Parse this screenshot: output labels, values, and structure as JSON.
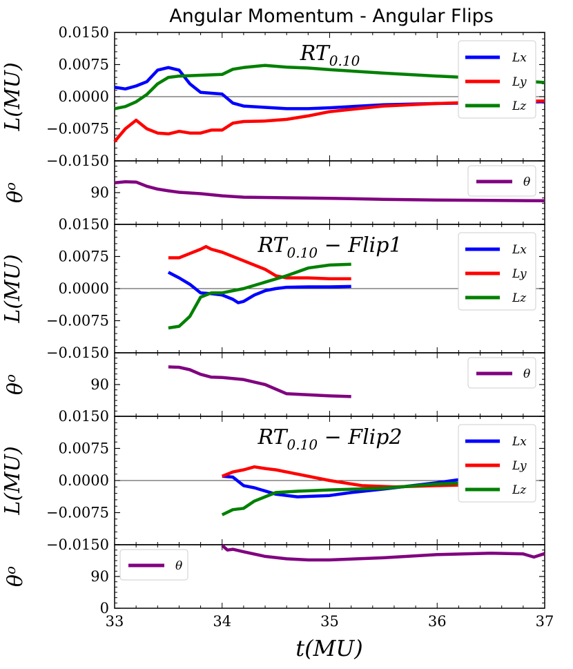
{
  "chart_data": {
    "type": "line",
    "title": "Angular Momentum - Angular Flips",
    "xlabel": "t(MU)",
    "xlim": [
      33,
      37
    ],
    "x_ticks": [
      "33",
      "34",
      "35",
      "36",
      "37"
    ],
    "colors": {
      "Lx": "#0000ff",
      "Ly": "#ff0000",
      "Lz": "#008000",
      "theta": "#800080"
    },
    "panels": [
      {
        "title_main": "RT",
        "title_sub": "0.10",
        "title_suffix": "",
        "L_ylabel": "L(MU)",
        "L_ylim": [
          -0.015,
          0.015
        ],
        "L_ticks": [
          "0.0150",
          "0.0075",
          "0.0000",
          "−0.0075",
          "−0.0150"
        ],
        "L_legend": [
          "Lx",
          "Ly",
          "Lz"
        ],
        "theta_ylabel": "θ",
        "theta_ylabel_sup": "o",
        "theta_ylim": [
          0,
          180
        ],
        "theta_ticks": [
          "90"
        ],
        "theta_legend": "θ",
        "theta_legend_pos": "top-right",
        "series": [
          {
            "name": "Lx",
            "x": [
              33.0,
              33.1,
              33.2,
              33.3,
              33.4,
              33.5,
              33.6,
              33.7,
              33.8,
              33.9,
              34.0,
              34.1,
              34.2,
              34.4,
              34.6,
              34.8,
              35.0,
              35.5,
              36.0,
              36.5,
              37.0
            ],
            "y": [
              0.0022,
              0.0018,
              0.0025,
              0.0035,
              0.0062,
              0.0068,
              0.0062,
              0.003,
              0.001,
              0.0008,
              0.0006,
              -0.0015,
              -0.0022,
              -0.0025,
              -0.0028,
              -0.0028,
              -0.0026,
              -0.0019,
              -0.0016,
              -0.0014,
              -0.0012
            ]
          },
          {
            "name": "Ly",
            "x": [
              33.0,
              33.1,
              33.2,
              33.3,
              33.4,
              33.5,
              33.6,
              33.7,
              33.8,
              33.9,
              34.0,
              34.1,
              34.2,
              34.4,
              34.6,
              34.8,
              35.0,
              35.5,
              36.0,
              36.5,
              37.0
            ],
            "y": [
              -0.0105,
              -0.0075,
              -0.0055,
              -0.0075,
              -0.0085,
              -0.0087,
              -0.0081,
              -0.0085,
              -0.0085,
              -0.0078,
              -0.0078,
              -0.0062,
              -0.0058,
              -0.0057,
              -0.0053,
              -0.0045,
              -0.0035,
              -0.0022,
              -0.0016,
              -0.0012,
              -0.001
            ]
          },
          {
            "name": "Lz",
            "x": [
              33.0,
              33.1,
              33.2,
              33.3,
              33.4,
              33.5,
              33.6,
              33.8,
              34.0,
              34.1,
              34.2,
              34.4,
              34.6,
              34.8,
              35.0,
              35.5,
              36.0,
              36.5,
              37.0
            ],
            "y": [
              -0.0028,
              -0.0023,
              -0.0012,
              0.0005,
              0.003,
              0.0045,
              0.0048,
              0.005,
              0.0052,
              0.0064,
              0.0068,
              0.0073,
              0.0069,
              0.0067,
              0.0063,
              0.0055,
              0.0048,
              0.0042,
              0.0033
            ]
          },
          {
            "name": "theta",
            "x": [
              33.0,
              33.1,
              33.2,
              33.3,
              33.4,
              33.5,
              33.6,
              33.8,
              34.0,
              34.2,
              34.5,
              35.0,
              35.5,
              36.0,
              36.5,
              37.0
            ],
            "y": [
              118,
              121,
              120,
              108,
              100,
              95,
              91,
              87,
              81,
              77,
              76,
              74,
              71,
              69,
              68,
              67
            ]
          }
        ]
      },
      {
        "title_main": "RT",
        "title_sub": "0.10",
        "title_suffix": " − Flip1",
        "L_ylabel": "L(MU)",
        "L_ylim": [
          -0.015,
          0.015
        ],
        "L_ticks": [
          "0.0150",
          "0.0075",
          "0.0000",
          "−0.0075",
          "−0.0150"
        ],
        "L_legend": [
          "Lx",
          "Ly",
          "Lz"
        ],
        "theta_ylabel": "θ",
        "theta_ylabel_sup": "o",
        "theta_ylim": [
          0,
          180
        ],
        "theta_ticks": [
          "90"
        ],
        "theta_legend": "θ",
        "theta_legend_pos": "top-right",
        "series": [
          {
            "name": "Lx",
            "x": [
              33.5,
              33.6,
              33.7,
              33.8,
              33.9,
              34.0,
              34.1,
              34.15,
              34.2,
              34.3,
              34.4,
              34.5,
              34.6,
              34.8,
              35.0,
              35.2
            ],
            "y": [
              0.0038,
              0.0025,
              0.001,
              -0.001,
              -0.0012,
              -0.0015,
              -0.0025,
              -0.0033,
              -0.003,
              -0.0015,
              -0.0005,
              0.0,
              0.0003,
              0.0004,
              0.0004,
              0.0005
            ]
          },
          {
            "name": "Ly",
            "x": [
              33.5,
              33.6,
              33.7,
              33.8,
              33.85,
              33.9,
              34.0,
              34.2,
              34.4,
              34.5,
              34.6,
              34.8,
              35.0,
              35.2
            ],
            "y": [
              0.0072,
              0.0072,
              0.0082,
              0.0092,
              0.0098,
              0.0092,
              0.0085,
              0.0065,
              0.0045,
              0.003,
              0.0025,
              0.0025,
              0.0023,
              0.0023
            ]
          },
          {
            "name": "Lz",
            "x": [
              33.5,
              33.6,
              33.7,
              33.8,
              33.9,
              34.0,
              34.2,
              34.4,
              34.6,
              34.8,
              35.0,
              35.2
            ],
            "y": [
              -0.0092,
              -0.0088,
              -0.0065,
              -0.002,
              -0.001,
              -0.001,
              0.0,
              0.0015,
              0.003,
              0.0048,
              0.0055,
              0.0057
            ]
          },
          {
            "name": "theta",
            "x": [
              33.5,
              33.6,
              33.7,
              33.8,
              33.9,
              34.0,
              34.2,
              34.4,
              34.6,
              35.0,
              35.2
            ],
            "y": [
              140,
              139,
              132,
              119,
              111,
              110,
              104,
              90,
              64,
              58,
              56
            ]
          }
        ]
      },
      {
        "title_main": "RT",
        "title_sub": "0.10",
        "title_suffix": " − Flip2",
        "L_ylabel": "L(MU)",
        "L_ylim": [
          -0.015,
          0.015
        ],
        "L_ticks": [
          "0.0150",
          "0.0075",
          "0.0000",
          "−0.0075",
          "−0.0150"
        ],
        "L_legend": [
          "Lx",
          "Ly",
          "Lz"
        ],
        "theta_ylabel": "θ",
        "theta_ylabel_sup": "o",
        "theta_ylim": [
          0,
          180
        ],
        "theta_ticks": [
          "0",
          "90"
        ],
        "theta_legend": "θ",
        "theta_legend_pos": "top-left",
        "series": [
          {
            "name": "Lx",
            "x": [
              34.0,
              34.1,
              34.2,
              34.3,
              34.5,
              34.7,
              35.0,
              35.2,
              35.5,
              36.0,
              36.2,
              36.3
            ],
            "y": [
              0.001,
              0.0008,
              -0.0012,
              -0.0017,
              -0.0032,
              -0.0038,
              -0.0035,
              -0.0028,
              -0.002,
              -0.0005,
              0.0002,
              0.0005
            ]
          },
          {
            "name": "Ly",
            "x": [
              34.0,
              34.1,
              34.2,
              34.3,
              34.4,
              34.5,
              34.7,
              35.0,
              35.3,
              35.6,
              36.0,
              36.3
            ],
            "y": [
              0.001,
              0.002,
              0.0025,
              0.0032,
              0.0028,
              0.0025,
              0.0015,
              0.0,
              -0.0012,
              -0.0015,
              -0.0012,
              -0.001
            ]
          },
          {
            "name": "Lz",
            "x": [
              34.0,
              34.1,
              34.2,
              34.3,
              34.5,
              34.7,
              35.0,
              35.5,
              36.0,
              36.3
            ],
            "y": [
              -0.008,
              -0.0068,
              -0.0065,
              -0.0048,
              -0.0028,
              -0.0025,
              -0.0022,
              -0.0018,
              -0.0008,
              -0.0005
            ]
          },
          {
            "name": "theta",
            "x": [
              34.0,
              34.05,
              34.1,
              34.2,
              34.4,
              34.6,
              34.8,
              35.0,
              35.5,
              36.0,
              36.5,
              36.8,
              36.9,
              37.0
            ],
            "y": [
              178,
              165,
              167,
              160,
              147,
              140,
              137,
              137,
              143,
              152,
              156,
              154,
              145,
              155
            ]
          }
        ]
      }
    ]
  }
}
